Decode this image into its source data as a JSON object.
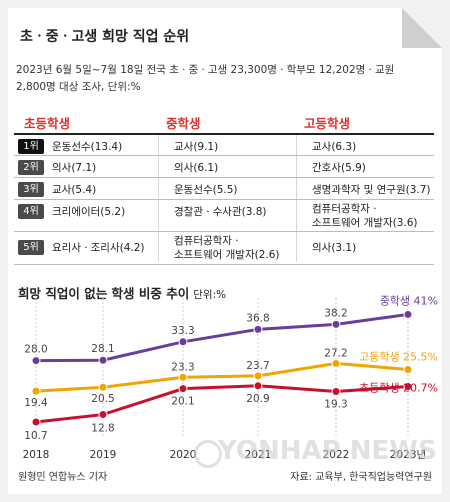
{
  "title": "초ㆍ중ㆍ고생 희망 직업 순위",
  "note": "2023년 6월 5일~7월 18일 전국 초ㆍ중ㆍ고생 23,300명ㆍ학부모 12,202명ㆍ교원 2,800명 대상 조사, 단위:%",
  "ranking": {
    "headers": [
      "초등학생",
      "중학생",
      "고등학생"
    ],
    "rows": [
      {
        "rank": "1위",
        "elementary": "운동선수(13.4)",
        "middle": "교사(9.1)",
        "high": "교사(6.3)"
      },
      {
        "rank": "2위",
        "elementary": "의사(7.1)",
        "middle": "의사(6.1)",
        "high": "간호사(5.9)"
      },
      {
        "rank": "3위",
        "elementary": "교사(5.4)",
        "middle": "운동선수(5.5)",
        "high": "생명과학자 및 연구원(3.7)"
      },
      {
        "rank": "4위",
        "elementary": "크리에이터(5.2)",
        "middle": "경찰관ㆍ수사관(3.8)",
        "high": "컴퓨터공학자ㆍ",
        "high2": "소프트웨어 개발자(3.6)"
      },
      {
        "rank": "5위",
        "elementary": "요리사ㆍ조리사(4.2)",
        "middle": "컴퓨터공학자ㆍ",
        "middle2": "소프트웨어 개발자(2.6)",
        "high": "의사(3.1)"
      }
    ]
  },
  "chart_title": "희망 직업이 없는 학생 비중 추이",
  "chart_unit": "단위:%",
  "chart_data": {
    "type": "line",
    "x": [
      "2018",
      "2019",
      "2020",
      "2021",
      "2022",
      "2023년"
    ],
    "series": [
      {
        "name": "중학생",
        "values": [
          28.0,
          28.1,
          33.3,
          36.8,
          38.2,
          41.0
        ],
        "labels": [
          "28.0",
          "28.1",
          "33.3",
          "36.8",
          "38.2",
          "41%"
        ],
        "color": "#6a3d9a"
      },
      {
        "name": "고등학생",
        "values": [
          19.4,
          20.5,
          23.3,
          23.7,
          27.2,
          25.5
        ],
        "labels": [
          "19.4",
          "20.5",
          "23.3",
          "23.7",
          "27.2",
          "25.5%"
        ],
        "color": "#f0a500"
      },
      {
        "name": "초등학생",
        "values": [
          10.7,
          12.8,
          20.1,
          20.9,
          19.3,
          20.7
        ],
        "labels": [
          "10.7",
          "12.8",
          "20.1",
          "20.9",
          "19.3",
          "20.7%"
        ],
        "color": "#c8102e"
      }
    ],
    "grid": true
  },
  "credit": "원형민 연합뉴스 기자",
  "source": "자료: 교육부, 한국직업능력연구원",
  "watermark": "YONHAP NEWS"
}
